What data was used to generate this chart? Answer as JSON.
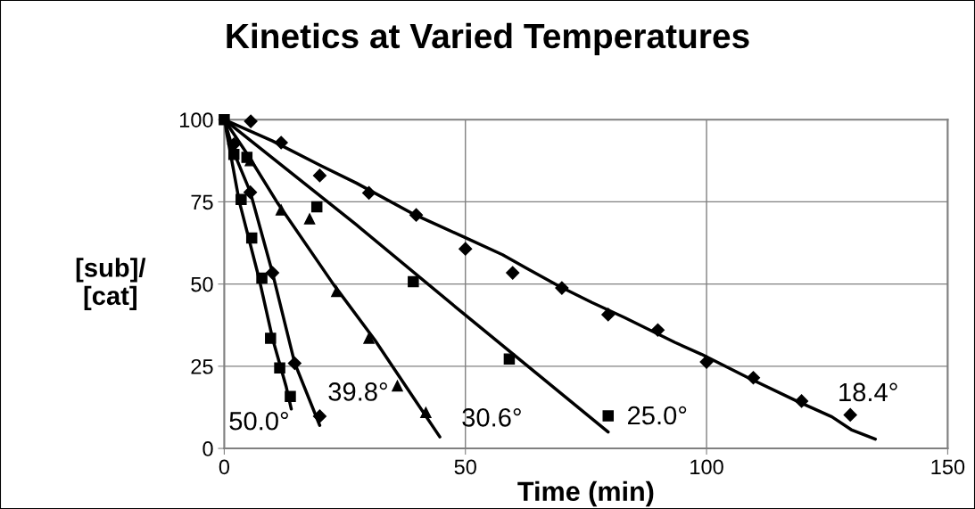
{
  "chart_data": {
    "type": "scatter",
    "title": "Kinetics at Varied Temperatures",
    "xlabel": "Time (min)",
    "ylabel": "[sub]/\n[cat]",
    "xlim": [
      0,
      150
    ],
    "xticks": [
      0,
      50,
      100,
      150
    ],
    "ylim": [
      0,
      100
    ],
    "yticks": [
      0,
      25,
      50,
      75,
      100
    ],
    "grid": true,
    "series": [
      {
        "marker": "diamond",
        "color": "#000000",
        "x": [
          5.5,
          11.8,
          19.8,
          30,
          39.8,
          50,
          59.8,
          70,
          79.6,
          89.9,
          100,
          109.7,
          119.7,
          129.8
        ],
        "values": [
          99.5,
          93,
          83,
          77.7,
          71,
          60.7,
          53.4,
          48.8,
          40.7,
          36,
          26.3,
          21.5,
          14.4,
          10.2
        ]
      },
      {
        "type": "line",
        "color": "#000000",
        "x": [
          0,
          10,
          20,
          27.4,
          39.6,
          49.7,
          57.7,
          62.7,
          69.5,
          76.2,
          83,
          93.5,
          99,
          108.9,
          118.7,
          126,
          130,
          135
        ],
        "values": [
          100,
          93.5,
          86,
          80.7,
          71,
          64.3,
          58.9,
          54.8,
          49.3,
          44.4,
          39.8,
          32.2,
          28.6,
          21.3,
          14.4,
          9.6,
          5.7,
          2.8
        ]
      },
      {
        "marker": "square",
        "color": "#000000",
        "x": [
          4.7,
          19.2,
          39.2,
          59.1,
          79.6
        ],
        "values": [
          88.5,
          73.5,
          50.7,
          27.2,
          9.9
        ]
      },
      {
        "type": "line",
        "color": "#000000",
        "x": [
          0,
          27.4,
          49.7,
          79.6
        ],
        "values": [
          100,
          68,
          40.9,
          5
        ]
      },
      {
        "marker": "triangle",
        "color": "#000000",
        "x": [
          5.4,
          11.8,
          17.7,
          23.3,
          30,
          35.9,
          41.8
        ],
        "values": [
          87.5,
          72.5,
          69.8,
          47.7,
          33.5,
          19,
          10.9
        ]
      },
      {
        "type": "line",
        "color": "#000000",
        "x": [
          0,
          5,
          10.9,
          22.6,
          31.2,
          39.9,
          44.7
        ],
        "values": [
          100,
          89,
          75,
          50,
          33,
          14,
          3.5
        ]
      },
      {
        "marker": "diamond",
        "color": "#000000",
        "x": [
          2,
          5.4,
          10,
          14.6,
          19.8
        ],
        "values": [
          92.5,
          77.9,
          53.4,
          25.9,
          9.8
        ]
      },
      {
        "type": "line",
        "color": "#000000",
        "x": [
          0,
          2,
          5.4,
          10,
          14.6,
          19.8
        ],
        "values": [
          100,
          90,
          78,
          53.4,
          26,
          7
        ]
      },
      {
        "marker": "square",
        "color": "#000000",
        "x": [
          0,
          2,
          3.5,
          5.7,
          7.8,
          9.6,
          11.5,
          13.7
        ],
        "values": [
          100,
          89.4,
          75.7,
          64,
          51.8,
          33.5,
          24.5,
          15.8
        ]
      },
      {
        "type": "line",
        "color": "#000000",
        "x": [
          0,
          3.1,
          7.2,
          10,
          12.8,
          13.9
        ],
        "values": [
          100,
          75.2,
          51.8,
          33.5,
          19,
          12
        ]
      }
    ],
    "annotations": [
      {
        "text": "50.0°",
        "x": 13.7,
        "y": 15.8
      },
      {
        "text": "39.8°",
        "x": 19.8,
        "y": 9.8
      },
      {
        "text": "30.6°",
        "x": 41.8,
        "y": 10.9
      },
      {
        "text": "25.0°",
        "x": 79.6,
        "y": 9.9
      },
      {
        "text": "18.4°",
        "x": 129.8,
        "y": 10.2
      }
    ]
  }
}
